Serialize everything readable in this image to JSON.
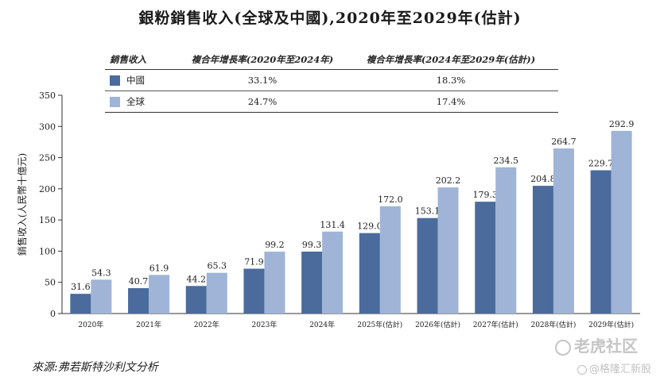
{
  "title": "銀粉銷售收入(全球及中國),2020年至2029年(估計)",
  "cagr_table": {
    "headers": [
      "銷售收入",
      "複合年增長率(2020年至2024年)",
      "複合年增長率(2024年至2029年(估計))"
    ],
    "rows": [
      {
        "name": "中國",
        "color": "#4a6b9c",
        "cagr1": "33.1%",
        "cagr2": "18.3%"
      },
      {
        "name": "全球",
        "color": "#9fb4d6",
        "cagr1": "24.7%",
        "cagr2": "17.4%"
      }
    ]
  },
  "chart_data": {
    "type": "bar",
    "title": "銀粉銷售收入(全球及中國),2020年至2029年(估計)",
    "ylabel": "銷售收入(人民幣十億元)",
    "xlabel": "",
    "ylim": [
      0,
      350
    ],
    "yticks": [
      0,
      50,
      100,
      150,
      200,
      250,
      300,
      350
    ],
    "categories": [
      "2020年",
      "2021年",
      "2022年",
      "2023年",
      "2024年",
      "2025年(估計)",
      "2026年(估計)",
      "2027年(估計)",
      "2028年(估計)",
      "2029年(估計)"
    ],
    "series": [
      {
        "name": "中國",
        "color": "#4a6b9c",
        "values": [
          31.6,
          40.7,
          44.2,
          71.9,
          99.3,
          129.0,
          153.1,
          179.3,
          204.8,
          229.7
        ],
        "labels": [
          "31.6",
          "40.7",
          "44.2",
          "71.9",
          "99.3",
          "129.0",
          "153.1",
          "179.3",
          "204.8",
          "229.7"
        ]
      },
      {
        "name": "全球",
        "color": "#9fb4d6",
        "values": [
          54.3,
          61.9,
          65.3,
          99.2,
          131.4,
          172.0,
          202.2,
          234.5,
          264.7,
          292.9
        ],
        "labels": [
          "54.3",
          "61.9",
          "65.3",
          "99.2",
          "131.4",
          "172.0",
          "202.2",
          "234.5",
          "264.7",
          "292.9"
        ]
      }
    ],
    "grid": false,
    "legend": "table-top"
  },
  "source": "來源:弗若斯特沙利文分析",
  "watermark": {
    "line1": "老虎社区",
    "line2": "@格隆汇新股"
  }
}
